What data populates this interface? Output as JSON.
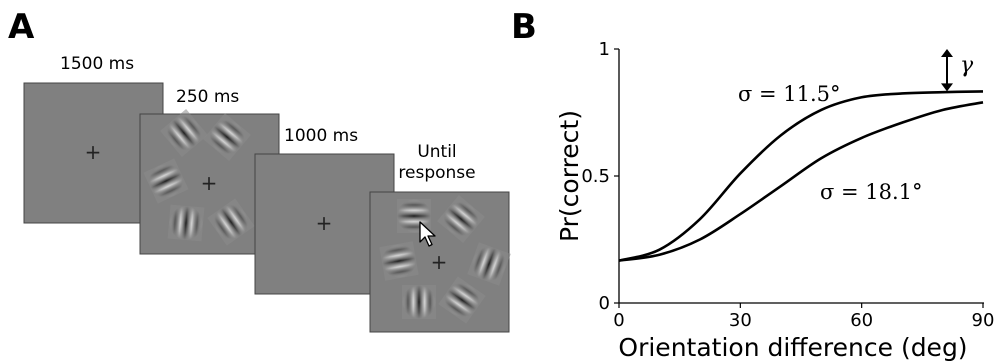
{
  "panel_a": {
    "letter": "A",
    "screens": [
      {
        "duration": "1500 ms",
        "content": "fixation"
      },
      {
        "duration": "250 ms",
        "content": "stimulus"
      },
      {
        "duration": "1000 ms",
        "content": "fixation"
      },
      {
        "duration_lines": [
          "Until",
          "response"
        ],
        "content": "response"
      }
    ],
    "fixation_symbol": "+",
    "screen_color": "#808080",
    "icons": [
      "gabor-patch-icon",
      "mouse-cursor-icon"
    ]
  },
  "panel_b": {
    "letter": "B"
  },
  "chart_data": {
    "type": "line",
    "title": "",
    "xlabel": "Orientation difference (deg)",
    "ylabel": "Pr(correct)",
    "xlim": [
      0,
      90
    ],
    "ylim": [
      0,
      1
    ],
    "xticks": [
      0,
      30,
      60,
      90
    ],
    "yticks": [
      0,
      0.5,
      1
    ],
    "ytick_labels": [
      "0",
      "0.5",
      "1"
    ],
    "grid": false,
    "series": [
      {
        "name": "σ = 11.5°",
        "x": [
          0,
          10,
          20,
          30,
          40,
          50,
          60,
          70,
          80,
          90
        ],
        "y": [
          0.167,
          0.21,
          0.33,
          0.51,
          0.66,
          0.76,
          0.81,
          0.825,
          0.83,
          0.833
        ]
      },
      {
        "name": "σ = 18.1°",
        "x": [
          0,
          10,
          20,
          30,
          40,
          50,
          60,
          70,
          80,
          90
        ],
        "y": [
          0.167,
          0.19,
          0.25,
          0.35,
          0.46,
          0.57,
          0.65,
          0.71,
          0.76,
          0.79
        ]
      }
    ],
    "annotations": [
      {
        "text": "σ = 11.5°",
        "target": "series-1"
      },
      {
        "text": "σ = 18.1°",
        "target": "series-2"
      },
      {
        "text": "γ",
        "meaning": "lapse gap between 1 and curve asymptote"
      }
    ]
  }
}
